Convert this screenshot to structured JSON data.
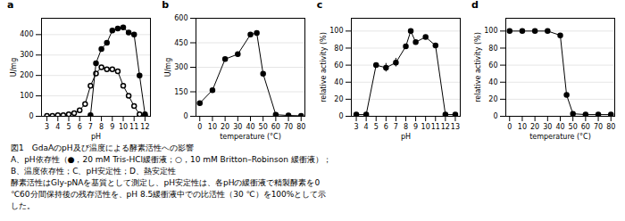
{
  "chart_data": [
    {
      "type": "line",
      "title": "a",
      "xlabel": "pH",
      "ylabel": "U/mg",
      "xlim": [
        2.5,
        12.5
      ],
      "ylim": [
        0,
        480
      ],
      "xticks": [
        3,
        4,
        5,
        6,
        7,
        8,
        9,
        10,
        11,
        12
      ],
      "yticks": [
        0,
        100,
        200,
        300,
        400
      ],
      "grid": "y",
      "series": [
        {
          "color": "black",
          "marker": "open_circle",
          "x": [
            3,
            3.5,
            4,
            4.5,
            5,
            5.5,
            6,
            6.5,
            7,
            7.5,
            8,
            8.5,
            9,
            9.5,
            10,
            10.5,
            11,
            11.5,
            12
          ],
          "values": [
            2,
            2,
            5,
            5,
            10,
            15,
            30,
            60,
            150,
            210,
            240,
            230,
            230,
            220,
            150,
            100,
            50,
            10,
            2
          ]
        },
        {
          "color": "black",
          "marker": "filled_circle",
          "x": [
            7,
            7.5,
            8,
            8.5,
            9,
            9.5,
            10,
            10.5,
            11,
            11.5,
            12
          ],
          "values": [
            5,
            260,
            330,
            360,
            420,
            430,
            435,
            410,
            400,
            200,
            10
          ]
        }
      ]
    },
    {
      "type": "line",
      "title": "b",
      "xlabel": "temperature (°C)",
      "ylabel": "U/mg",
      "xlim": [
        -3,
        83
      ],
      "ylim": [
        0,
        600
      ],
      "xticks": [
        0,
        10,
        20,
        30,
        40,
        50,
        60,
        70,
        80
      ],
      "yticks": [
        0,
        150,
        300,
        450,
        600
      ],
      "grid": "y",
      "series": [
        {
          "color": "black",
          "marker": "filled_circle",
          "x": [
            0,
            10,
            20,
            30,
            40,
            45,
            50,
            60,
            70,
            80
          ],
          "values": [
            80,
            160,
            350,
            380,
            500,
            510,
            260,
            10,
            5,
            3
          ]
        }
      ]
    },
    {
      "type": "line",
      "title": "c",
      "xlabel": "pH",
      "ylabel": "relative activity (%)",
      "xlim": [
        2.5,
        13.5
      ],
      "ylim": [
        0,
        115
      ],
      "xticks": [
        3,
        4,
        5,
        6,
        7,
        8,
        9,
        10,
        11,
        12,
        13
      ],
      "yticks": [
        0,
        20,
        40,
        60,
        80,
        100
      ],
      "grid": "y",
      "series": [
        {
          "color": "black",
          "marker": "filled_circle",
          "x": [
            3,
            4,
            5,
            6,
            7,
            8,
            8.5,
            9,
            10,
            11,
            12,
            13
          ],
          "values": [
            2,
            2,
            60,
            57,
            63,
            82,
            100,
            87,
            93,
            83,
            2,
            2
          ],
          "error": [
            0,
            0,
            0,
            5,
            5,
            0,
            0,
            0,
            0,
            0,
            0,
            0
          ]
        }
      ]
    },
    {
      "type": "line",
      "title": "d",
      "xlabel": "temperature (°C)",
      "ylabel": "relative activity (%)",
      "xlim": [
        -3,
        83
      ],
      "ylim": [
        0,
        115
      ],
      "xticks": [
        0,
        10,
        20,
        30,
        40,
        50,
        60,
        70,
        80
      ],
      "yticks": [
        0,
        20,
        40,
        60,
        80,
        100
      ],
      "grid": "y",
      "series": [
        {
          "color": "black",
          "marker": "filled_circle",
          "x": [
            0,
            10,
            20,
            30,
            40,
            45,
            50,
            60,
            70,
            80
          ],
          "values": [
            100,
            100,
            100,
            100,
            95,
            25,
            3,
            2,
            2,
            2
          ]
        }
      ]
    }
  ],
  "caption": [
    "図1　GdaAのpH及び温度による酵素活性への影響",
    "A、pH依存性（●，20 mM Tris-HCl緩衝液；○，10 mM Britton–Robinson 緩衝液）；",
    "B、温度依存性；C、pH安定性；D、熱安定性",
    "酵素活性はGly-pNAを基質として測定し、pH安定性は、各pHの緩衝液で精製酵素を0",
    "℃​60分間保持後の残存活性を、pH 8.5緩衝液中での比活性（30 ℃）を100%として示",
    "した。"
  ]
}
